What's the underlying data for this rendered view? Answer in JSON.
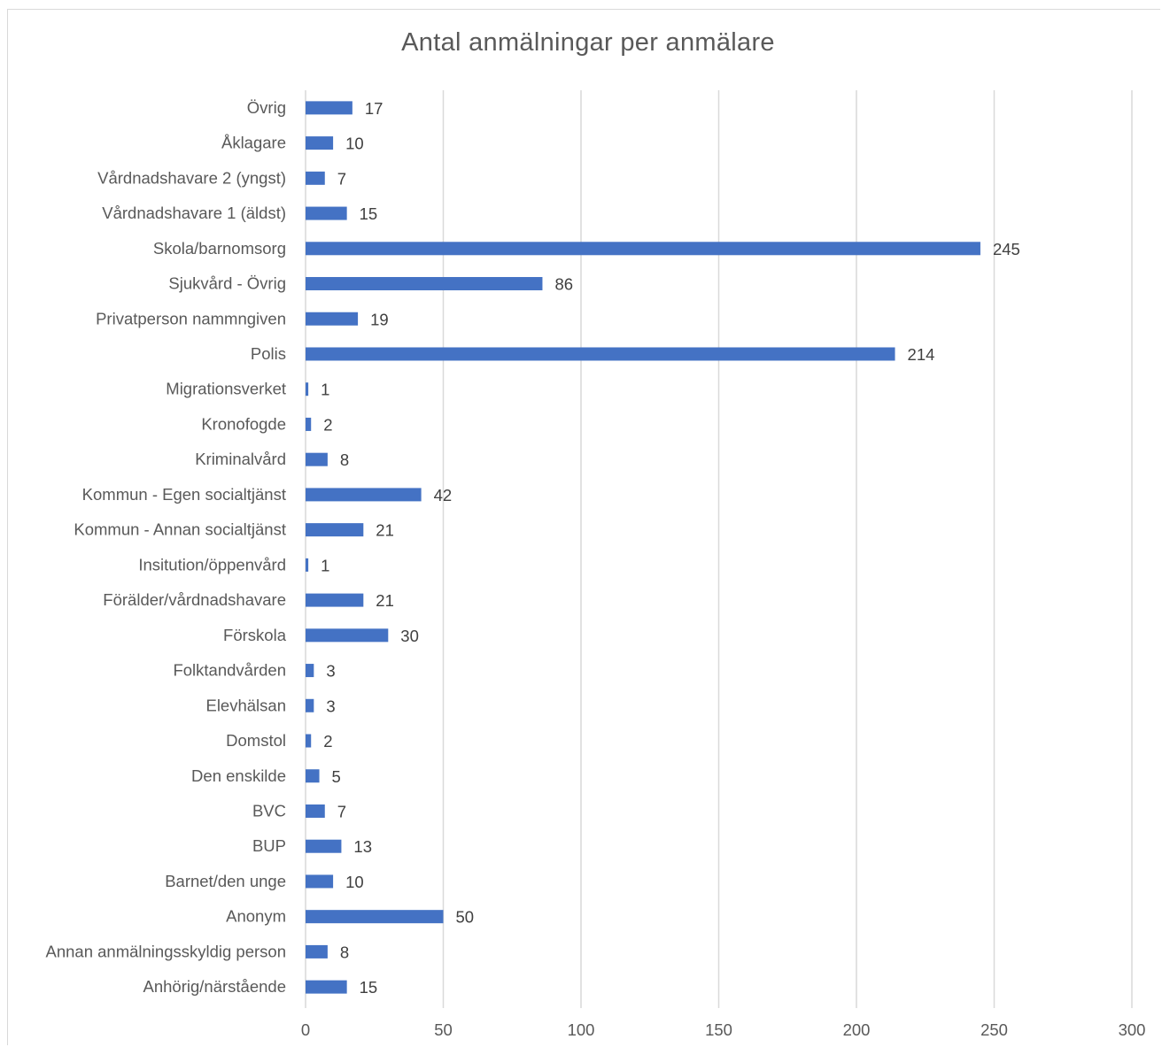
{
  "chart_data": {
    "type": "bar",
    "orientation": "horizontal",
    "title": "Antal anmälningar per anmälare",
    "xlabel": "",
    "ylabel": "",
    "xlim": [
      0,
      300
    ],
    "xticks": [
      0,
      50,
      100,
      150,
      200,
      250,
      300
    ],
    "grid": "vertical",
    "legend": "none",
    "bar_color": "#4472c4",
    "categories": [
      "Övrig",
      "Åklagare",
      "Vårdnadshavare 2 (yngst)",
      "Vårdnadshavare 1 (äldst)",
      "Skola/barnomsorg",
      "Sjukvård - Övrig",
      "Privatperson nammngiven",
      "Polis",
      "Migrationsverket",
      "Kronofogde",
      "Kriminalvård",
      "Kommun - Egen socialtjänst",
      "Kommun - Annan socialtjänst",
      "Insitution/öppenvård",
      "Förälder/vårdnadshavare",
      "Förskola",
      "Folktandvården",
      "Elevhälsan",
      "Domstol",
      "Den enskilde",
      "BVC",
      "BUP",
      "Barnet/den unge",
      "Anonym",
      "Annan anmälningsskyldig person",
      "Anhörig/närstående"
    ],
    "values": [
      17,
      10,
      7,
      15,
      245,
      86,
      19,
      214,
      1,
      2,
      8,
      42,
      21,
      1,
      21,
      30,
      3,
      3,
      2,
      5,
      7,
      13,
      10,
      50,
      8,
      15
    ]
  }
}
